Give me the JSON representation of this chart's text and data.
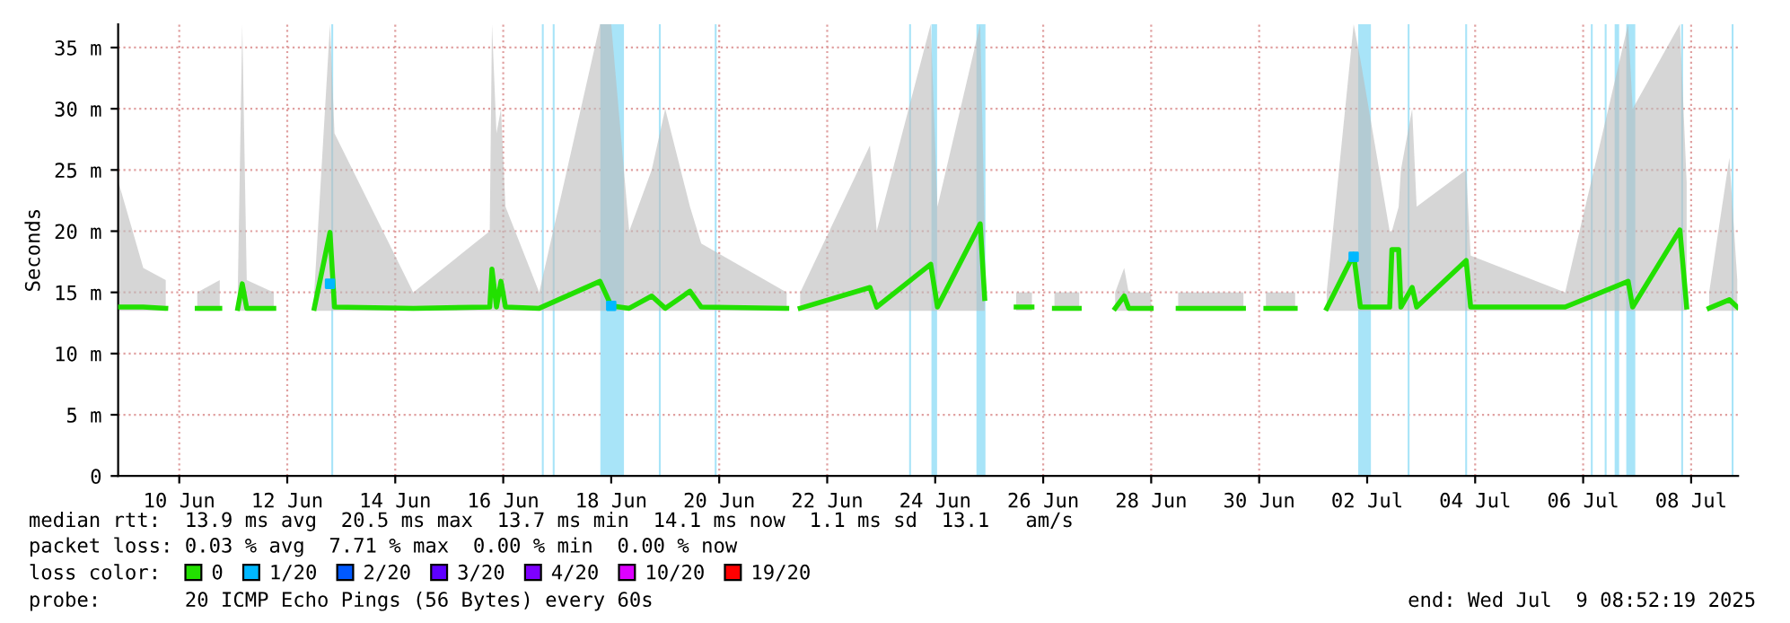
{
  "chart_data": {
    "type": "line",
    "ylabel": "Seconds",
    "xlim": [
      "2025-06-09T08:50",
      "2025-07-09T08:52"
    ],
    "xticks": [
      {
        "value": "2025-06-10T12:00",
        "label": "10 Jun"
      },
      {
        "value": "2025-06-12T12:00",
        "label": "12 Jun"
      },
      {
        "value": "2025-06-14T12:00",
        "label": "14 Jun"
      },
      {
        "value": "2025-06-16T12:00",
        "label": "16 Jun"
      },
      {
        "value": "2025-06-18T12:00",
        "label": "18 Jun"
      },
      {
        "value": "2025-06-20T12:00",
        "label": "20 Jun"
      },
      {
        "value": "2025-06-22T12:00",
        "label": "22 Jun"
      },
      {
        "value": "2025-06-24T12:00",
        "label": "24 Jun"
      },
      {
        "value": "2025-06-26T12:00",
        "label": "26 Jun"
      },
      {
        "value": "2025-06-28T12:00",
        "label": "28 Jun"
      },
      {
        "value": "2025-06-30T12:00",
        "label": "30 Jun"
      },
      {
        "value": "2025-07-02T12:00",
        "label": "02 Jul"
      },
      {
        "value": "2025-07-04T12:00",
        "label": "04 Jul"
      },
      {
        "value": "2025-07-06T12:00",
        "label": "06 Jul"
      },
      {
        "value": "2025-07-08T12:00",
        "label": "08 Jul"
      }
    ],
    "ylim": [
      0,
      36.9
    ],
    "yticks": [
      0,
      {
        "value": 5,
        "label": "5 m"
      },
      {
        "value": 10,
        "label": "10 m"
      },
      {
        "value": 15,
        "label": "15 m"
      },
      {
        "value": 20,
        "label": "20 m"
      },
      {
        "value": 25,
        "label": "25 m"
      },
      {
        "value": 30,
        "label": "30 m"
      },
      {
        "value": 35,
        "label": "35 m"
      }
    ],
    "grid": true,
    "legend": "bottom",
    "legend_title": "loss color:",
    "series": [
      {
        "name": "0",
        "color": "#22e000",
        "x": [
          "2025-06-09T09:00",
          "2025-06-09T20:00",
          "2025-06-10T06:00",
          "2025-06-10T12:00",
          "2025-06-10T20:00",
          "2025-06-11T06:00",
          "2025-06-11T10:00",
          "2025-06-11T14:00",
          "2025-06-11T16:00",
          "2025-06-11T18:00",
          "2025-06-12T06:00",
          "2025-06-12T16:00",
          "2025-06-13T00:00",
          "2025-06-13T07:00",
          "2025-06-13T09:00",
          "2025-06-14T20:00",
          "2025-06-16T06:00",
          "2025-06-16T07:00",
          "2025-06-16T09:00",
          "2025-06-16T11:00",
          "2025-06-16T13:00",
          "2025-06-17T04:00",
          "2025-06-18T07:00",
          "2025-06-18T12:00",
          "2025-06-18T20:00",
          "2025-06-19T06:00",
          "2025-06-19T12:00",
          "2025-06-19T23:00",
          "2025-06-20T04:00",
          "2025-06-21T18:00",
          "2025-06-21T21:00",
          "2025-06-22T00:00",
          "2025-06-23T07:00",
          "2025-06-23T10:00",
          "2025-06-24T10:00",
          "2025-06-24T13:00",
          "2025-06-25T08:00",
          "2025-06-25T10:00",
          "2025-06-25T13:00",
          "2025-06-26T00:00",
          "2025-06-26T07:00",
          "2025-06-26T12:00",
          "2025-06-26T17:00",
          "2025-06-27T04:00",
          "2025-06-27T12:00",
          "2025-06-27T20:00",
          "2025-06-28T00:00",
          "2025-06-28T02:00",
          "2025-06-28T12:00",
          "2025-06-28T18:00",
          "2025-06-29T00:00",
          "2025-06-30T05:00",
          "2025-06-30T10:00",
          "2025-06-30T15:00",
          "2025-07-01T04:00",
          "2025-07-01T10:00",
          "2025-07-01T18:00",
          "2025-07-02T06:00",
          "2025-07-02T09:00",
          "2025-07-02T22:00",
          "2025-07-02T23:00",
          "2025-07-03T02:00",
          "2025-07-03T03:00",
          "2025-07-03T08:00",
          "2025-07-03T10:00",
          "2025-07-04T08:00",
          "2025-07-04T10:00",
          "2025-07-06T04:00",
          "2025-07-07T08:00",
          "2025-07-07T10:00",
          "2025-07-08T07:00",
          "2025-07-08T10:00",
          "2025-07-08T16:00",
          "2025-07-08T20:00",
          "2025-07-09T05:00",
          "2025-07-09T08:30"
        ],
        "values": [
          13.8,
          13.8,
          13.7,
          null,
          13.7,
          13.7,
          null,
          13.7,
          15.7,
          13.7,
          13.7,
          null,
          13.7,
          19.9,
          13.8,
          13.7,
          13.8,
          16.9,
          13.8,
          15.9,
          13.8,
          13.7,
          15.9,
          13.9,
          13.7,
          14.7,
          13.7,
          15.1,
          13.8,
          13.7,
          null,
          13.7,
          15.4,
          13.8,
          17.3,
          13.8,
          20.6,
          14.5,
          null,
          13.8,
          13.8,
          null,
          13.7,
          13.7,
          null,
          13.7,
          14.7,
          13.7,
          13.7,
          null,
          13.7,
          13.7,
          null,
          13.7,
          13.7,
          null,
          13.7,
          18.1,
          13.8,
          13.8,
          18.5,
          18.5,
          13.8,
          15.4,
          13.8,
          17.6,
          13.8,
          13.8,
          15.9,
          13.8,
          20.1,
          13.8,
          null,
          13.7,
          14.4,
          13.8
        ],
        "lower": [
          13.5,
          13.5,
          13.5,
          null,
          13.5,
          13.5,
          null,
          13.5,
          13.5,
          13.5,
          13.5,
          null,
          13.5,
          13.5,
          13.5,
          13.5,
          13.5,
          13.5,
          13.5,
          13.5,
          13.5,
          13.5,
          13.5,
          13.5,
          13.5,
          13.5,
          13.5,
          13.5,
          13.5,
          13.5,
          null,
          13.5,
          13.5,
          13.5,
          13.5,
          13.5,
          13.5,
          13.5,
          null,
          13.5,
          13.5,
          null,
          13.5,
          13.5,
          null,
          13.5,
          13.5,
          13.5,
          13.5,
          null,
          13.5,
          13.5,
          null,
          13.5,
          13.5,
          null,
          13.5,
          13.5,
          13.5,
          13.5,
          13.5,
          13.5,
          13.5,
          13.5,
          13.5,
          13.5,
          13.5,
          13.5,
          13.5,
          13.5,
          13.5,
          13.5,
          null,
          13.5,
          13.5,
          13.5
        ],
        "upper": [
          24,
          17,
          16,
          null,
          15,
          16,
          null,
          15,
          36.9,
          16,
          15,
          null,
          15,
          36.9,
          28,
          15,
          20,
          36.9,
          28,
          30,
          22,
          15,
          36.9,
          36.9,
          20,
          25,
          30,
          22,
          19,
          15,
          null,
          15,
          27,
          20,
          36.9,
          22,
          36.9,
          20,
          null,
          15,
          15,
          null,
          15,
          15,
          null,
          15,
          17,
          15,
          15,
          null,
          15,
          15,
          null,
          15,
          15,
          null,
          15,
          36.9,
          34,
          20,
          20,
          22,
          25,
          30,
          22,
          25,
          18,
          15,
          36.9,
          30,
          36.9,
          24,
          null,
          15,
          26,
          16
        ]
      },
      {
        "name": "1/20",
        "color": "#00b8ff",
        "type": "scatter",
        "x": [
          "2025-06-13T07:00",
          "2025-06-18T12:00",
          "2025-07-02T06:00"
        ],
        "values": [
          15.7,
          13.9,
          17.9
        ]
      },
      {
        "name": "2/20",
        "color": "#0059ff",
        "type": "scatter"
      },
      {
        "name": "3/20",
        "color": "#5e00ff",
        "type": "scatter"
      },
      {
        "name": "4/20",
        "color": "#7e00ff",
        "type": "scatter"
      },
      {
        "name": "10/20",
        "color": "#dd00ff",
        "type": "scatter"
      },
      {
        "name": "19/20",
        "color": "#ff0000",
        "type": "scatter"
      }
    ],
    "bands": [
      {
        "axis": "x",
        "from": "2025-06-13T07:35",
        "to": "2025-06-13T08:25",
        "color": "#a8e4f8"
      },
      {
        "axis": "x",
        "from": "2025-06-17T05:10",
        "to": "2025-06-17T06:00",
        "color": "#a8e4f8"
      },
      {
        "axis": "x",
        "from": "2025-06-17T10:00",
        "to": "2025-06-17T10:50",
        "color": "#a8e4f8"
      },
      {
        "axis": "x",
        "from": "2025-06-18T07:10",
        "to": "2025-06-18T17:40",
        "color": "#a8e4f8"
      },
      {
        "axis": "x",
        "from": "2025-06-19T09:10",
        "to": "2025-06-19T10:00",
        "color": "#a8e4f8"
      },
      {
        "axis": "x",
        "from": "2025-06-20T10:00",
        "to": "2025-06-20T10:50",
        "color": "#a8e4f8"
      },
      {
        "axis": "x",
        "from": "2025-06-24T00:25",
        "to": "2025-06-24T01:15",
        "color": "#a8e4f8"
      },
      {
        "axis": "x",
        "from": "2025-06-24T10:20",
        "to": "2025-06-24T12:50",
        "color": "#a8e4f8"
      },
      {
        "axis": "x",
        "from": "2025-06-25T06:20",
        "to": "2025-06-25T10:20",
        "color": "#a8e4f8"
      },
      {
        "axis": "x",
        "from": "2025-07-02T08:00",
        "to": "2025-07-02T13:40",
        "color": "#a8e4f8"
      },
      {
        "axis": "x",
        "from": "2025-07-03T06:00",
        "to": "2025-07-03T06:50",
        "color": "#a8e4f8"
      },
      {
        "axis": "x",
        "from": "2025-07-04T07:35",
        "to": "2025-07-04T08:25",
        "color": "#a8e4f8"
      },
      {
        "axis": "x",
        "from": "2025-07-06T15:25",
        "to": "2025-07-06T16:15",
        "color": "#a8e4f8"
      },
      {
        "axis": "x",
        "from": "2025-07-06T21:35",
        "to": "2025-07-06T22:25",
        "color": "#a8e4f8"
      },
      {
        "axis": "x",
        "from": "2025-07-07T02:00",
        "to": "2025-07-07T04:00",
        "color": "#a8e4f8"
      },
      {
        "axis": "x",
        "from": "2025-07-07T07:10",
        "to": "2025-07-07T11:10",
        "color": "#a8e4f8"
      },
      {
        "axis": "x",
        "from": "2025-07-08T07:35",
        "to": "2025-07-08T08:25",
        "color": "#a8e4f8"
      },
      {
        "axis": "x",
        "from": "2025-07-09T06:00",
        "to": "2025-07-09T06:50",
        "color": "#a8e4f8"
      }
    ],
    "annotations": [
      "median rtt:  13.9 ms avg  20.5 ms max  13.7 ms min  14.1 ms now  1.1 ms sd  13.1   am/s",
      "packet loss: 0.03 % avg  7.71 % max  0.00 % min  0.00 % now",
      "probe:       20 ICMP Echo Pings (56 Bytes) every 60s",
      "end: Wed Jul  9 08:52:19 2025"
    ]
  }
}
